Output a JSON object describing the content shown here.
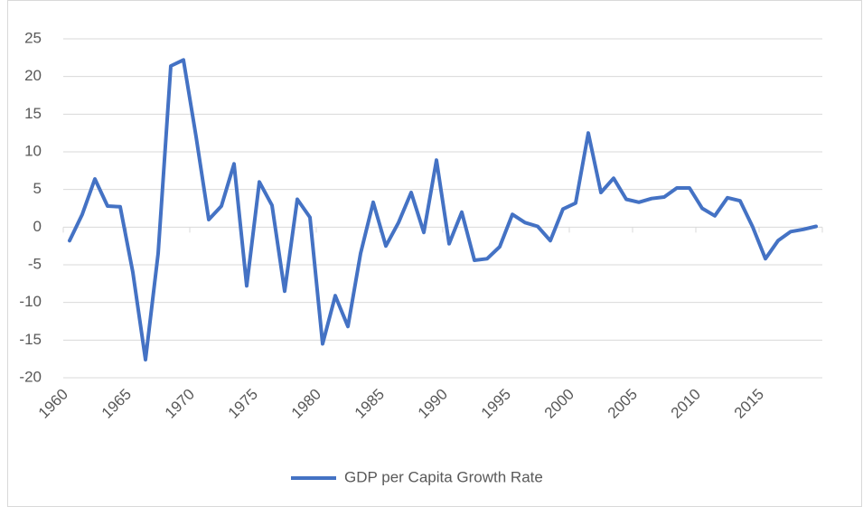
{
  "chart_data": {
    "type": "line",
    "categories": [
      "1960",
      null,
      null,
      null,
      null,
      "1965",
      null,
      null,
      null,
      null,
      "1970",
      null,
      null,
      null,
      null,
      "1975",
      null,
      null,
      null,
      null,
      "1980",
      null,
      null,
      null,
      null,
      "1985",
      null,
      null,
      null,
      null,
      "1990",
      null,
      null,
      null,
      null,
      "1995",
      null,
      null,
      null,
      null,
      "2000",
      null,
      null,
      null,
      null,
      "2005",
      null,
      null,
      null,
      null,
      "2010",
      null,
      null,
      null,
      null,
      "2015",
      null,
      null,
      null,
      null
    ],
    "series": [
      {
        "name": "GDP per Capita Growth Rate",
        "color": "#4472c4",
        "values": [
          -1.8,
          1.7,
          6.4,
          2.8,
          2.7,
          -6,
          -17.6,
          -3.5,
          21.4,
          22.2,
          12,
          1,
          2.8,
          8.4,
          -7.8,
          6,
          2.9,
          -8.5,
          3.7,
          1.3,
          -15.5,
          -9.1,
          -13.2,
          -3.5,
          3.3,
          -2.5,
          0.6,
          4.6,
          -0.7,
          8.9,
          -2.2,
          2,
          -4.4,
          -4.2,
          -2.6,
          1.7,
          0.6,
          0.1,
          -1.8,
          2.4,
          3.2,
          12.5,
          4.6,
          6.5,
          3.7,
          3.3,
          3.8,
          4,
          5.2,
          5.2,
          2.5,
          1.5,
          3.9,
          3.5,
          0,
          -4.2,
          -1.8,
          -0.6,
          -0.3,
          0.1
        ]
      }
    ],
    "ylim": [
      -20,
      25
    ],
    "yticks": [
      -20,
      -15,
      -10,
      -5,
      0,
      5,
      10,
      15,
      20,
      25
    ],
    "grid": true,
    "legend": "bottom"
  }
}
